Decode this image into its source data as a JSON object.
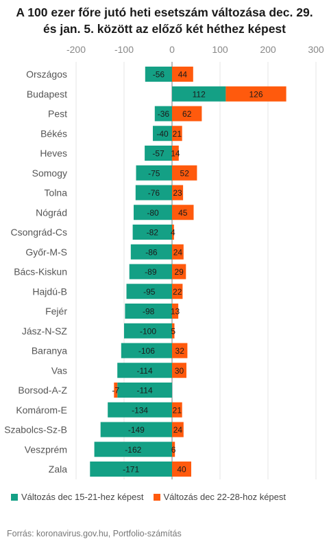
{
  "title_line1": "A 100 ezer főre jutó heti esetszám változása dec. 29.",
  "title_line2": "és jan. 5. között az előző két héthez képest",
  "source": "Forrás: koronavirus.gov.hu, Portfolio-számítás",
  "colors": {
    "series1": "#14a085",
    "series2": "#ff5a0d",
    "axis": "#888888",
    "grid": "#e6e6e6",
    "zero": "#777777"
  },
  "chart_data": {
    "type": "bar",
    "orientation": "horizontal",
    "stacking": "diverging",
    "xlim": [
      -200,
      300
    ],
    "xticks": [
      "-200",
      "-100",
      "0",
      "100",
      "200",
      "300"
    ],
    "xtick_values": [
      -200,
      -100,
      0,
      100,
      200,
      300
    ],
    "categories": [
      "Országos",
      "Budapest",
      "Pest",
      "Békés",
      "Heves",
      "Somogy",
      "Tolna",
      "Nógrád",
      "Csongrád-Cs",
      "Győr-M-S",
      "Bács-Kiskun",
      "Hajdú-B",
      "Fejér",
      "Jász-N-SZ",
      "Baranya",
      "Vas",
      "Borsod-A-Z",
      "Komárom-E",
      "Szabolcs-Sz-B",
      "Veszprém",
      "Zala"
    ],
    "series": [
      {
        "name": "Változás dec 15-21-hez képest",
        "values": [
          -56,
          112,
          -36,
          -40,
          -57,
          -75,
          -76,
          -80,
          -82,
          -86,
          -89,
          -95,
          -98,
          -100,
          -106,
          -114,
          -114,
          -134,
          -149,
          -162,
          -171
        ]
      },
      {
        "name": "Változás dec 22-28-hoz képest",
        "values": [
          44,
          126,
          62,
          21,
          14,
          52,
          23,
          45,
          4,
          24,
          29,
          22,
          13,
          5,
          32,
          30,
          -7,
          21,
          24,
          6,
          40
        ]
      }
    ],
    "legend": "bottom-left",
    "grid": true
  }
}
